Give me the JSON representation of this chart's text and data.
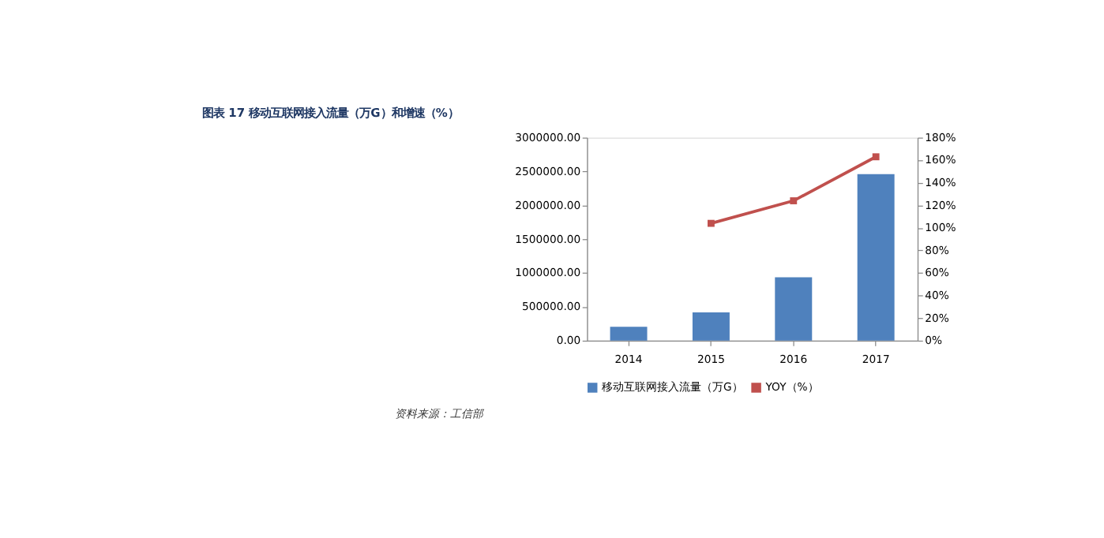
{
  "chart_data": {
    "type": "bar",
    "title": "图表 17 移动互联网接入流量（万G）和增速（%）",
    "categories": [
      "2014",
      "2015",
      "2016",
      "2017"
    ],
    "series": [
      {
        "name": "移动互联网接入流量（万G）",
        "color": "#4f81bd",
        "values": [
          206000,
          418700,
          936000,
          2460000
        ]
      },
      {
        "name": "YOY（%）",
        "color": "#c0504d",
        "type": "line",
        "axis": "y2",
        "marker": "square",
        "values": [
          null,
          104,
          124,
          163
        ]
      }
    ],
    "ylim": [
      0,
      3000000
    ],
    "yticks": [
      {
        "value": 0,
        "label": "0.00"
      },
      {
        "value": 500000,
        "label": "500000.00"
      },
      {
        "value": 1000000,
        "label": "1000000.00"
      },
      {
        "value": 1500000,
        "label": "1500000.00"
      },
      {
        "value": 2000000,
        "label": "2000000.00"
      },
      {
        "value": 2500000,
        "label": "2500000.00"
      },
      {
        "value": 3000000,
        "label": "3000000.00"
      }
    ],
    "y2lim": [
      0,
      180
    ],
    "y2ticks": [
      {
        "value": 0,
        "label": "0%"
      },
      {
        "value": 20,
        "label": "20%"
      },
      {
        "value": 40,
        "label": "40%"
      },
      {
        "value": 60,
        "label": "60%"
      },
      {
        "value": 80,
        "label": "80%"
      },
      {
        "value": 100,
        "label": "100%"
      },
      {
        "value": 120,
        "label": "120%"
      },
      {
        "value": 140,
        "label": "140%"
      },
      {
        "value": 160,
        "label": "160%"
      },
      {
        "value": 180,
        "label": "180%"
      }
    ],
    "legend": "bottom",
    "grid": false,
    "annotations": [
      "资料来源：工信部"
    ]
  }
}
